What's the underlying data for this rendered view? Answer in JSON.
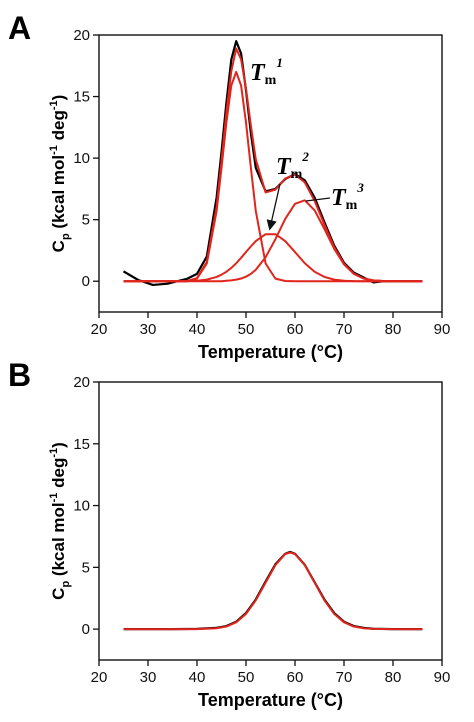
{
  "chart_data": [
    {
      "type": "line",
      "panel": "A",
      "xlabel": "Temperature (°C)",
      "ylabel": [
        "C",
        "p",
        " (kcal mol",
        "-1",
        " deg",
        "-1",
        ")"
      ],
      "xlim": [
        20,
        90
      ],
      "xticks": [
        20,
        30,
        40,
        50,
        60,
        70,
        80,
        90
      ],
      "ylim": [
        -2.5,
        20
      ],
      "yticks": [
        0,
        5,
        10,
        15,
        20
      ],
      "x": [
        25,
        28,
        31,
        34,
        36,
        38,
        40,
        42,
        44,
        45,
        46,
        47,
        48,
        49,
        50,
        51,
        52,
        54,
        56,
        58,
        60,
        62,
        64,
        66,
        68,
        70,
        72,
        74,
        76,
        78,
        80,
        82,
        84,
        86
      ],
      "series": [
        {
          "color": "#000000",
          "values": [
            0.8,
            0.1,
            -0.3,
            -0.2,
            0,
            0.2,
            0.6,
            2.0,
            6.8,
            10.5,
            14.5,
            18,
            19.5,
            18.5,
            15.5,
            12,
            9.2,
            7.3,
            7.5,
            8.3,
            8.7,
            8.2,
            6.8,
            4.8,
            2.9,
            1.5,
            0.7,
            0.3,
            -0.1,
            0,
            0,
            0,
            0,
            0
          ]
        },
        {
          "color": "#e0251c",
          "values": [
            0,
            0,
            0,
            0,
            0,
            0.01,
            0.25,
            1.57,
            6.05,
            9.73,
            13.71,
            17.05,
            18.9,
            18.02,
            15.64,
            12.63,
            9.89,
            7.21,
            7.44,
            8.34,
            8.66,
            8.03,
            6.53,
            4.6,
            2.76,
            1.41,
            0.61,
            0.22,
            0.07,
            0.02,
            0,
            0,
            0,
            0
          ]
        },
        {
          "color": "#e0251c",
          "values": [
            0,
            0,
            0,
            0,
            0,
            0,
            0.21,
            1.44,
            5.7,
            9.2,
            12.9,
            15.9,
            17,
            15.9,
            12.9,
            9.2,
            5.7,
            1.44,
            0.21,
            0.02,
            0,
            0,
            0,
            0,
            0,
            0,
            0,
            0,
            0,
            0,
            0,
            0,
            0,
            0
          ]
        },
        {
          "color": "#e0251c",
          "values": [
            0,
            0,
            0,
            0,
            0,
            0.01,
            0.04,
            0.13,
            0.35,
            0.53,
            0.77,
            1.08,
            1.46,
            1.9,
            2.37,
            2.83,
            3.26,
            3.82,
            3.82,
            3.26,
            2.37,
            1.46,
            0.77,
            0.35,
            0.13,
            0.04,
            0.01,
            0,
            0,
            0,
            0,
            0,
            0,
            0
          ]
        },
        {
          "color": "#e0251c",
          "values": [
            0,
            0,
            0,
            0,
            0,
            0,
            0,
            0,
            0,
            0,
            0.04,
            0.07,
            0.13,
            0.22,
            0.37,
            0.6,
            0.93,
            1.95,
            3.41,
            5.06,
            6.29,
            6.57,
            5.76,
            4.25,
            2.63,
            1.37,
            0.6,
            0.22,
            0.07,
            0.02,
            0,
            0,
            0,
            0
          ]
        }
      ],
      "annotations": [
        {
          "symbol": "T",
          "subscript": "m",
          "superscript": "1"
        },
        {
          "symbol": "T",
          "subscript": "m",
          "superscript": "2"
        },
        {
          "symbol": "T",
          "subscript": "m",
          "superscript": "3"
        }
      ]
    },
    {
      "type": "line",
      "panel": "B",
      "xlabel": "Temperature (°C)",
      "ylabel": [
        "C",
        "p",
        " (kcal mol",
        "-1",
        " deg",
        "-1",
        ")"
      ],
      "xlim": [
        20,
        90
      ],
      "xticks": [
        20,
        30,
        40,
        50,
        60,
        70,
        80,
        90
      ],
      "ylim": [
        -2.5,
        20
      ],
      "yticks": [
        0,
        5,
        10,
        15,
        20
      ],
      "x": [
        25,
        30,
        35,
        40,
        44,
        46,
        48,
        50,
        52,
        54,
        56,
        58,
        59,
        60,
        62,
        64,
        66,
        68,
        70,
        72,
        74,
        76,
        80,
        86
      ],
      "series": [
        {
          "color": "#000000",
          "values": [
            0,
            0,
            0,
            0.02,
            0.1,
            0.25,
            0.6,
            1.3,
            2.4,
            3.85,
            5.25,
            6.1,
            6.25,
            6.1,
            5.2,
            3.8,
            2.4,
            1.3,
            0.6,
            0.25,
            0.1,
            0.03,
            0,
            0
          ]
        },
        {
          "color": "#e0251c",
          "values": [
            0,
            0,
            0,
            0,
            0.07,
            0.21,
            0.55,
            1.23,
            2.33,
            3.76,
            5.18,
            6.08,
            6.2,
            6.08,
            5.18,
            3.76,
            2.33,
            1.23,
            0.55,
            0.21,
            0.07,
            0.02,
            0,
            0
          ]
        }
      ]
    }
  ]
}
